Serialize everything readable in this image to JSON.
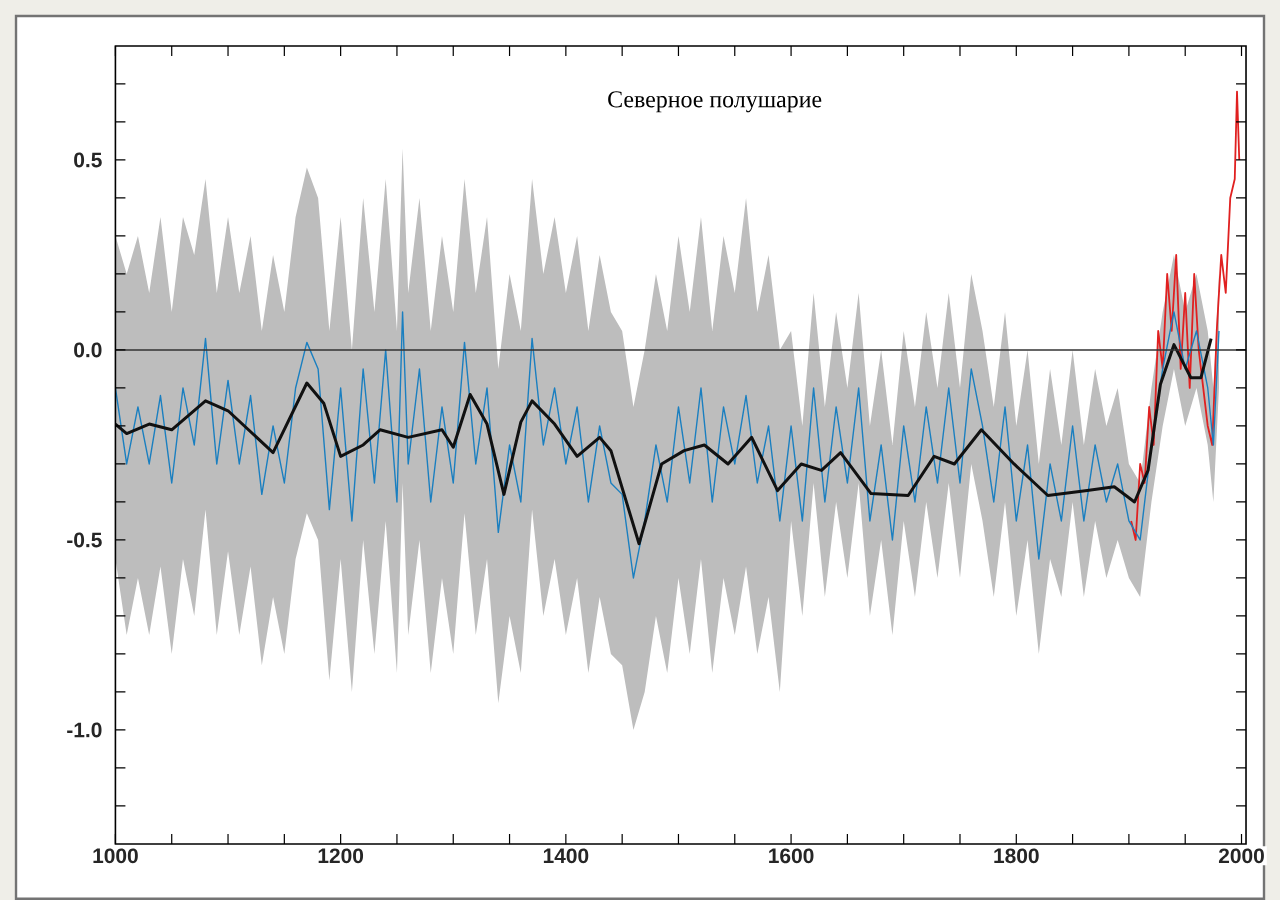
{
  "chart_data": {
    "type": "line",
    "title": "Северное полушарие",
    "xlim": [
      1000,
      2004
    ],
    "ylim": [
      -1.3,
      0.8
    ],
    "xticks": [
      1000,
      {
        "value": 1050,
        "label": null
      },
      1200,
      {
        "value": 1100,
        "label": null
      },
      {
        "value": 1150,
        "label": null
      },
      {
        "value": 1250,
        "label": null
      },
      {
        "value": 1300,
        "label": null
      },
      {
        "value": 1350,
        "label": null
      },
      1400,
      {
        "value": 1450,
        "label": null
      },
      {
        "value": 1500,
        "label": null
      },
      {
        "value": 1550,
        "label": null
      },
      1600,
      {
        "value": 1650,
        "label": null
      },
      {
        "value": 1700,
        "label": null
      },
      {
        "value": 1750,
        "label": null
      },
      1800,
      {
        "value": 1850,
        "label": null
      },
      {
        "value": 1900,
        "label": null
      },
      {
        "value": 1950,
        "label": null
      },
      2000
    ],
    "yticks": [
      {
        "value": -1.0,
        "label": "-1.0"
      },
      {
        "value": -0.5,
        "label": "-0.5"
      },
      {
        "value": 0.0,
        "label": "0.0"
      },
      {
        "value": 0.5,
        "label": "0.5"
      },
      {
        "value": -1.2,
        "label": null
      },
      {
        "value": -1.1,
        "label": null
      },
      {
        "value": -0.9,
        "label": null
      },
      {
        "value": -0.8,
        "label": null
      },
      {
        "value": -0.7,
        "label": null
      },
      {
        "value": -0.6,
        "label": null
      },
      {
        "value": -0.4,
        "label": null
      },
      {
        "value": -0.3,
        "label": null
      },
      {
        "value": -0.2,
        "label": null
      },
      {
        "value": -0.1,
        "label": null
      },
      {
        "value": 0.1,
        "label": null
      },
      {
        "value": 0.2,
        "label": null
      },
      {
        "value": 0.3,
        "label": null
      },
      {
        "value": 0.4,
        "label": null
      },
      {
        "value": 0.6,
        "label": null
      },
      {
        "value": 0.7,
        "label": null
      }
    ],
    "ref_lines": [
      {
        "axis": "y",
        "value": 0,
        "color": "#333333"
      }
    ],
    "series": [
      {
        "color": "#e02020",
        "x": [
          1902,
          1906,
          1910,
          1914,
          1918,
          1922,
          1926,
          1930,
          1934,
          1938,
          1942,
          1946,
          1950,
          1954,
          1958,
          1962,
          1966,
          1970,
          1974,
          1978,
          1982,
          1986,
          1990,
          1994,
          1996,
          1998
        ],
        "values": [
          -0.45,
          -0.5,
          -0.3,
          -0.35,
          -0.15,
          -0.25,
          0.05,
          -0.05,
          0.2,
          0.05,
          0.25,
          -0.05,
          0.15,
          -0.1,
          0.2,
          0.0,
          -0.1,
          -0.2,
          -0.25,
          0.05,
          0.25,
          0.15,
          0.4,
          0.45,
          0.68,
          0.5
        ]
      },
      {
        "color": "#1a7fc0",
        "x": [
          1000,
          1010,
          1020,
          1030,
          1040,
          1050,
          1060,
          1070,
          1080,
          1090,
          1100,
          1110,
          1120,
          1130,
          1140,
          1150,
          1160,
          1170,
          1180,
          1190,
          1200,
          1210,
          1220,
          1230,
          1240,
          1250,
          1255,
          1260,
          1270,
          1280,
          1290,
          1300,
          1310,
          1320,
          1330,
          1340,
          1350,
          1360,
          1370,
          1380,
          1390,
          1400,
          1410,
          1420,
          1430,
          1440,
          1450,
          1460,
          1470,
          1480,
          1490,
          1500,
          1510,
          1520,
          1530,
          1540,
          1550,
          1560,
          1570,
          1580,
          1590,
          1600,
          1610,
          1620,
          1630,
          1640,
          1650,
          1660,
          1670,
          1680,
          1690,
          1700,
          1710,
          1720,
          1730,
          1740,
          1750,
          1760,
          1770,
          1780,
          1790,
          1800,
          1810,
          1820,
          1830,
          1840,
          1850,
          1860,
          1870,
          1880,
          1890,
          1900,
          1910,
          1920,
          1930,
          1940,
          1950,
          1960,
          1970,
          1975,
          1980
        ],
        "values": [
          -0.1,
          -0.3,
          -0.15,
          -0.3,
          -0.12,
          -0.35,
          -0.1,
          -0.25,
          0.03,
          -0.3,
          -0.08,
          -0.3,
          -0.12,
          -0.38,
          -0.2,
          -0.35,
          -0.1,
          0.02,
          -0.05,
          -0.42,
          -0.1,
          -0.45,
          -0.05,
          -0.35,
          0.0,
          -0.4,
          0.1,
          -0.3,
          -0.05,
          -0.4,
          -0.15,
          -0.35,
          0.02,
          -0.3,
          -0.1,
          -0.48,
          -0.25,
          -0.4,
          0.03,
          -0.25,
          -0.1,
          -0.3,
          -0.15,
          -0.4,
          -0.2,
          -0.35,
          -0.38,
          -0.6,
          -0.45,
          -0.25,
          -0.4,
          -0.15,
          -0.35,
          -0.1,
          -0.4,
          -0.15,
          -0.3,
          -0.12,
          -0.35,
          -0.2,
          -0.45,
          -0.2,
          -0.45,
          -0.1,
          -0.4,
          -0.15,
          -0.35,
          -0.1,
          -0.45,
          -0.25,
          -0.5,
          -0.2,
          -0.4,
          -0.15,
          -0.35,
          -0.1,
          -0.35,
          -0.05,
          -0.2,
          -0.4,
          -0.15,
          -0.45,
          -0.25,
          -0.55,
          -0.3,
          -0.45,
          -0.2,
          -0.45,
          -0.25,
          -0.4,
          -0.3,
          -0.45,
          -0.5,
          -0.25,
          -0.05,
          0.1,
          -0.05,
          0.05,
          -0.1,
          -0.25,
          0.05
        ],
        "upper": [
          0.3,
          0.2,
          0.3,
          0.15,
          0.35,
          0.1,
          0.35,
          0.25,
          0.45,
          0.15,
          0.35,
          0.15,
          0.3,
          0.05,
          0.25,
          0.1,
          0.35,
          0.48,
          0.4,
          0.05,
          0.35,
          0.0,
          0.4,
          0.1,
          0.45,
          0.05,
          0.53,
          0.15,
          0.4,
          0.05,
          0.3,
          0.1,
          0.45,
          0.15,
          0.35,
          -0.05,
          0.2,
          0.05,
          0.45,
          0.2,
          0.35,
          0.15,
          0.3,
          0.05,
          0.25,
          0.1,
          0.05,
          -0.15,
          0.0,
          0.2,
          0.05,
          0.3,
          0.1,
          0.35,
          0.05,
          0.3,
          0.15,
          0.4,
          0.1,
          0.25,
          0.0,
          0.05,
          -0.2,
          0.15,
          -0.15,
          0.1,
          -0.1,
          0.15,
          -0.2,
          0.0,
          -0.25,
          0.05,
          -0.15,
          0.1,
          -0.1,
          0.15,
          -0.1,
          0.2,
          0.05,
          -0.15,
          0.1,
          -0.2,
          0.0,
          -0.3,
          -0.05,
          -0.25,
          0.0,
          -0.25,
          -0.05,
          -0.2,
          -0.1,
          -0.3,
          -0.35,
          -0.1,
          0.1,
          0.25,
          0.1,
          0.2,
          0.05,
          -0.1,
          0.2
        ],
        "lower": [
          -0.55,
          -0.75,
          -0.6,
          -0.75,
          -0.57,
          -0.8,
          -0.55,
          -0.7,
          -0.42,
          -0.75,
          -0.53,
          -0.75,
          -0.57,
          -0.83,
          -0.65,
          -0.8,
          -0.55,
          -0.43,
          -0.5,
          -0.87,
          -0.55,
          -0.9,
          -0.5,
          -0.8,
          -0.45,
          -0.85,
          -0.35,
          -0.75,
          -0.5,
          -0.85,
          -0.6,
          -0.8,
          -0.43,
          -0.75,
          -0.55,
          -0.93,
          -0.7,
          -0.85,
          -0.42,
          -0.7,
          -0.55,
          -0.75,
          -0.6,
          -0.85,
          -0.65,
          -0.8,
          -0.83,
          -1.0,
          -0.9,
          -0.7,
          -0.85,
          -0.6,
          -0.8,
          -0.55,
          -0.85,
          -0.6,
          -0.75,
          -0.57,
          -0.8,
          -0.65,
          -0.9,
          -0.45,
          -0.7,
          -0.35,
          -0.65,
          -0.4,
          -0.6,
          -0.35,
          -0.7,
          -0.5,
          -0.75,
          -0.45,
          -0.65,
          -0.4,
          -0.6,
          -0.35,
          -0.6,
          -0.3,
          -0.45,
          -0.65,
          -0.4,
          -0.7,
          -0.5,
          -0.8,
          -0.55,
          -0.65,
          -0.4,
          -0.65,
          -0.45,
          -0.6,
          -0.5,
          -0.6,
          -0.65,
          -0.4,
          -0.2,
          -0.05,
          -0.2,
          -0.1,
          -0.25,
          -0.4,
          -0.1
        ]
      },
      {
        "color": "#111111",
        "x": [
          1000,
          1010,
          1030,
          1050,
          1080,
          1100,
          1140,
          1170,
          1185,
          1200,
          1220,
          1235,
          1260,
          1290,
          1300,
          1315,
          1330,
          1345,
          1360,
          1370,
          1390,
          1410,
          1430,
          1440,
          1465,
          1485,
          1505,
          1523,
          1544,
          1565,
          1588,
          1609,
          1627,
          1644,
          1671,
          1704,
          1727,
          1745,
          1769,
          1798,
          1828,
          1863,
          1887,
          1905,
          1917,
          1928,
          1940,
          1955,
          1964,
          1973
        ],
        "values": [
          -0.195,
          -0.22,
          -0.195,
          -0.21,
          -0.134,
          -0.16,
          -0.27,
          -0.087,
          -0.14,
          -0.28,
          -0.25,
          -0.21,
          -0.23,
          -0.21,
          -0.256,
          -0.117,
          -0.195,
          -0.38,
          -0.19,
          -0.134,
          -0.195,
          -0.28,
          -0.23,
          -0.265,
          -0.51,
          -0.3,
          -0.265,
          -0.25,
          -0.3,
          -0.23,
          -0.37,
          -0.3,
          -0.317,
          -0.27,
          -0.378,
          -0.383,
          -0.28,
          -0.3,
          -0.21,
          -0.3,
          -0.383,
          -0.37,
          -0.36,
          -0.4,
          -0.317,
          -0.09,
          0.014,
          -0.073,
          -0.073,
          0.03
        ]
      }
    ]
  }
}
